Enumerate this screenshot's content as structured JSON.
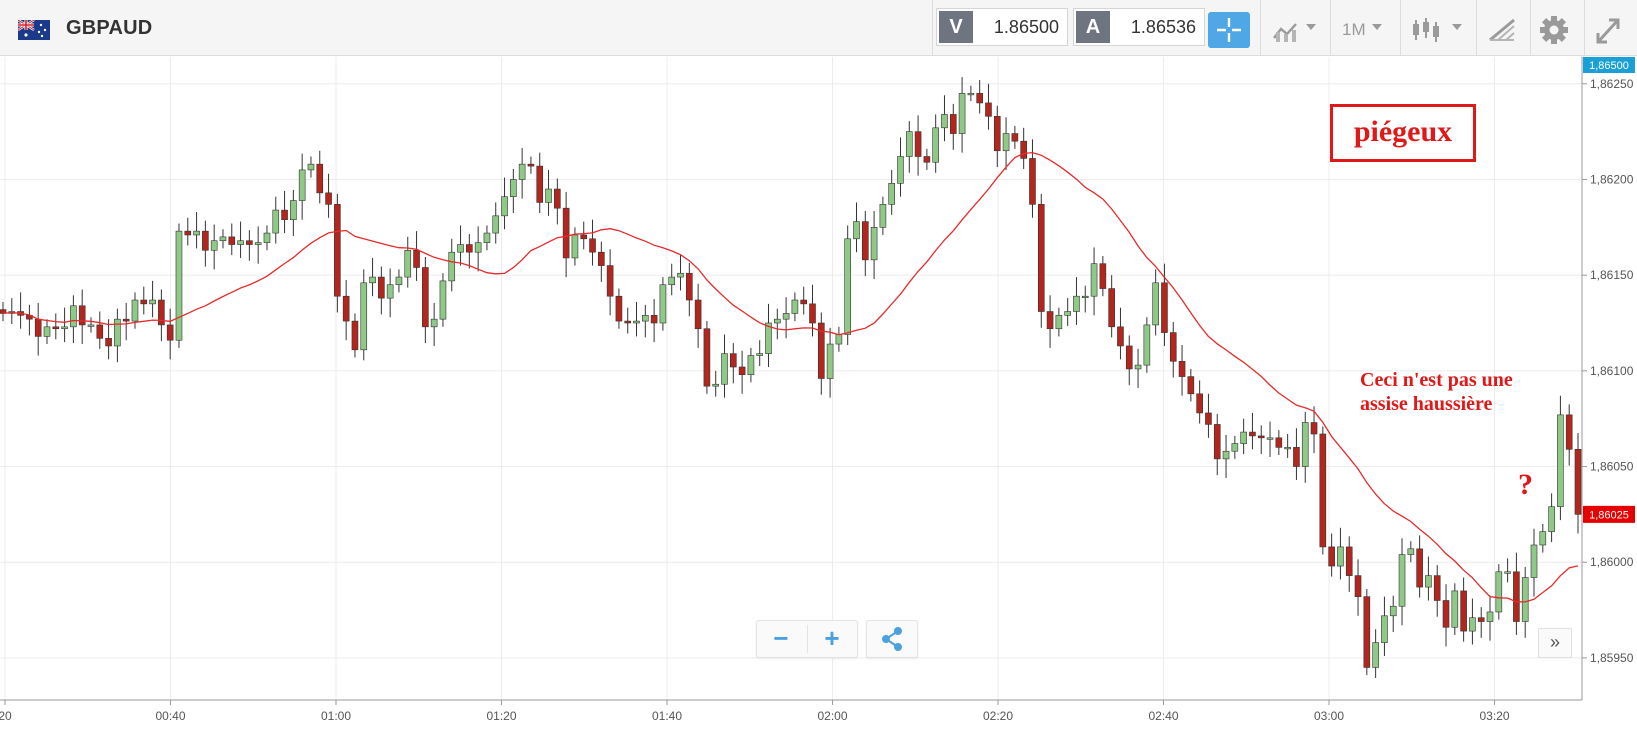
{
  "instrument": {
    "symbol": "GBPAUD",
    "flag_icon": "uk-australia-flag-icon"
  },
  "quotes": {
    "sell_label": "V",
    "sell_value": "1.86500",
    "buy_label": "A",
    "buy_value": "1.86536"
  },
  "toolbar": {
    "crosshair_icon": "crosshair-icon",
    "indicators_icon": "indicators-icon",
    "timeframe_label": "1M",
    "chart_type_icon": "candlestick-icon",
    "drawing_icon": "drawing-tools-icon",
    "settings_icon": "gear-icon",
    "fullscreen_icon": "fullscreen-icon"
  },
  "controls": {
    "zoom_out_label": "−",
    "zoom_in_label": "+",
    "share_icon": "share-icon",
    "scroll_right_label": "»"
  },
  "colors": {
    "up": "#8fc986",
    "down": "#b3261e",
    "ma": "#e52b2b",
    "bid_tag": "#1aa0d6",
    "last_tag": "#e60000"
  },
  "annotations": {
    "box_label": "piégeux",
    "note_text": "Ceci n'est pas une\nassise haussière",
    "question_mark": "?"
  },
  "chart_data": {
    "type": "candlestick",
    "symbol": "GBPAUD",
    "timeframe": "1M",
    "x_ticks": [
      "20",
      "00:40",
      "01:00",
      "01:20",
      "01:40",
      "02:00",
      "02:20",
      "02:40",
      "03:00",
      "03:20"
    ],
    "y_ticks": [
      "1,86250",
      "1,86200",
      "1,86150",
      "1,86100",
      "1,86050",
      "1,86000",
      "1,85950"
    ],
    "y_tick_values": [
      1.8625,
      1.862,
      1.8615,
      1.861,
      1.8605,
      1.86,
      1.8595
    ],
    "ylim": [
      1.85928,
      1.86264
    ],
    "price_tags": {
      "bid": "1,86500",
      "last": "1,86025"
    },
    "last_value": 1.86025,
    "grid": true,
    "series": [
      {
        "name": "",
        "type": "candle",
        "close": [
          1.8613,
          1.86131,
          1.86129,
          1.86127,
          1.86118,
          1.86123,
          1.86122,
          1.86123,
          1.86134,
          1.86124,
          1.86124,
          1.86117,
          1.86113,
          1.86127,
          1.86126,
          1.86137,
          1.86135,
          1.86137,
          1.86124,
          1.86116,
          1.86173,
          1.86171,
          1.86173,
          1.86163,
          1.86168,
          1.8617,
          1.86166,
          1.86168,
          1.86166,
          1.86167,
          1.86172,
          1.86184,
          1.86179,
          1.86189,
          1.86205,
          1.86208,
          1.86193,
          1.86187,
          1.86139,
          1.86126,
          1.86111,
          1.86146,
          1.86149,
          1.86138,
          1.86145,
          1.86149,
          1.86163,
          1.86154,
          1.86123,
          1.86127,
          1.86147,
          1.86162,
          1.86166,
          1.86162,
          1.86167,
          1.86172,
          1.86181,
          1.86191,
          1.862,
          1.86208,
          1.86207,
          1.86188,
          1.86195,
          1.86185,
          1.86159,
          1.86171,
          1.86169,
          1.86162,
          1.86155,
          1.86139,
          1.86126,
          1.86125,
          1.86126,
          1.86129,
          1.86125,
          1.86145,
          1.86149,
          1.86151,
          1.86137,
          1.86122,
          1.86092,
          1.86093,
          1.86109,
          1.86102,
          1.86098,
          1.86108,
          1.86109,
          1.86125,
          1.86127,
          1.8613,
          1.86137,
          1.86135,
          1.86125,
          1.86096,
          1.86114,
          1.86119,
          1.86169,
          1.86178,
          1.86158,
          1.86175,
          1.86187,
          1.86198,
          1.86212,
          1.86225,
          1.86212,
          1.86209,
          1.86227,
          1.86234,
          1.86224,
          1.86245,
          1.86245,
          1.8624,
          1.86233,
          1.86215,
          1.86224,
          1.8622,
          1.86211,
          1.86187,
          1.86131,
          1.86122,
          1.86129,
          1.86131,
          1.86139,
          1.86139,
          1.86156,
          1.86143,
          1.86123,
          1.86113,
          1.86101,
          1.86103,
          1.86124,
          1.86146,
          1.8612,
          1.86105,
          1.86097,
          1.86088,
          1.86078,
          1.86072,
          1.86054,
          1.86058,
          1.86062,
          1.86068,
          1.86066,
          1.86065,
          1.86065,
          1.8606,
          1.8606,
          1.8605,
          1.86073,
          1.86067,
          1.86008,
          1.85998,
          1.86008,
          1.85993,
          1.85982,
          1.85945,
          1.85958,
          1.85972,
          1.85977,
          1.86004,
          1.86007,
          1.85987,
          1.85993,
          1.8598,
          1.85966,
          1.85985,
          1.85964,
          1.85971,
          1.85969,
          1.85974,
          1.85995,
          1.85995,
          1.85969,
          1.85992,
          1.86009,
          1.86016,
          1.86029,
          1.86077,
          1.86059,
          1.86025
        ]
      }
    ],
    "moving_average": {
      "color": "#e52b2b"
    }
  }
}
